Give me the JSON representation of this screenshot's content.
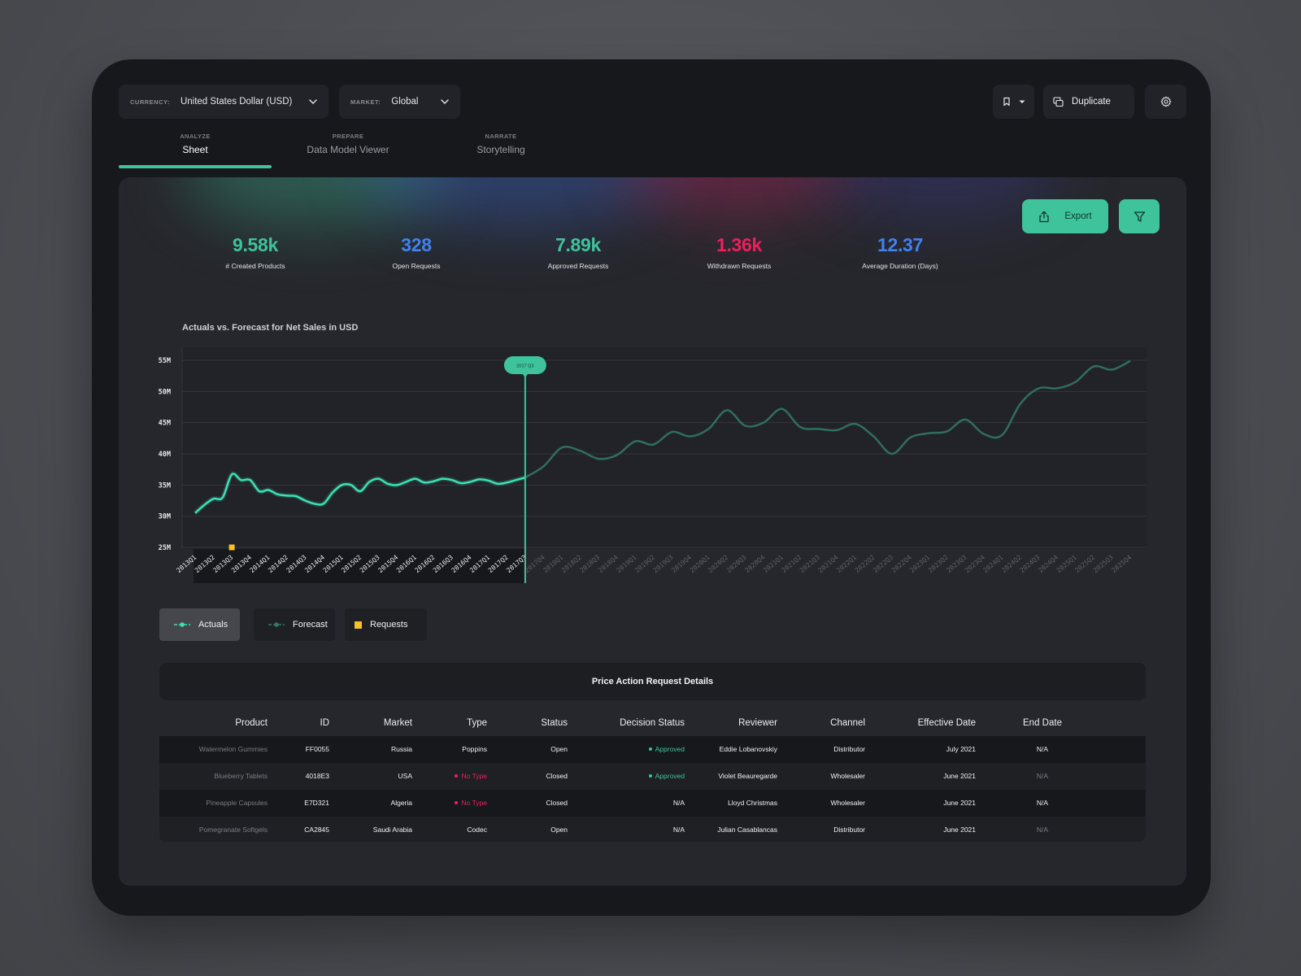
{
  "toolbar": {
    "currency": {
      "tag": "CURRENCY:",
      "value": "United States Dollar (USD)"
    },
    "market": {
      "tag": "MARKET:",
      "value": "Global"
    },
    "duplicate_label": "Duplicate"
  },
  "tabs": [
    {
      "tag": "ANALYZE",
      "label": "Sheet"
    },
    {
      "tag": "PREPARE",
      "label": "Data Model Viewer"
    },
    {
      "tag": "NARRATE",
      "label": "Storytelling"
    }
  ],
  "kpis": [
    {
      "value": "9.58k",
      "label": "# Created Products",
      "color": "#3ec39a"
    },
    {
      "value": "328",
      "label": "Open Requests",
      "color": "#3f82f0"
    },
    {
      "value": "7.89k",
      "label": "Approved Requests",
      "color": "#3ec39a"
    },
    {
      "value": "1.36k",
      "label": "Withdrawn Requests",
      "color": "#ef1f5d"
    },
    {
      "value": "12.37",
      "label": "Average Duration (Days)",
      "color": "#3f82f0"
    }
  ],
  "export_label": "Export",
  "chart_data": {
    "type": "line",
    "title": "Actuals vs. Forecast for Net Sales in USD",
    "y_ticks": [
      "55M",
      "50M",
      "45M",
      "40M",
      "35M",
      "30M",
      "25M"
    ],
    "ylim": [
      25,
      55
    ],
    "y_unit": "M",
    "categories": [
      "2013Q1",
      "2013Q2",
      "2013Q3",
      "2013Q4",
      "2014Q1",
      "2014Q2",
      "2014Q3",
      "2014Q4",
      "2015Q1",
      "2015Q2",
      "2015Q3",
      "2015Q4",
      "2016Q1",
      "2016Q2",
      "2016Q3",
      "2016Q4",
      "2017Q1",
      "2017Q2",
      "2017Q3",
      "2017Q4",
      "2018Q1",
      "2018Q2",
      "2018Q3",
      "2018Q4",
      "2019Q1",
      "2019Q2",
      "2019Q3",
      "2019Q4",
      "2020Q1",
      "2020Q2",
      "2020Q3",
      "2020Q4",
      "2021Q1",
      "2021Q2",
      "2021Q3",
      "2021Q4",
      "2022Q1",
      "2022Q2",
      "2022Q3",
      "2022Q4",
      "2023Q1",
      "2023Q2",
      "2023Q3",
      "2023Q4",
      "2024Q1",
      "2024Q2",
      "2024Q3",
      "2024Q4",
      "2025Q1",
      "2025Q2",
      "2025Q3",
      "2025Q4"
    ],
    "series": [
      {
        "name": "Actuals",
        "color": "#3de0b4",
        "x": [
          0,
          0.5,
          1,
          1.5,
          2,
          2.5,
          3,
          3.5,
          4,
          4.5,
          5,
          5.5,
          6,
          6.5,
          7,
          7.5,
          8,
          8.5,
          9,
          9.5,
          10,
          10.5,
          11,
          11.5,
          12,
          12.5,
          13,
          13.5,
          14,
          14.5,
          15,
          15.5,
          16,
          16.5,
          17,
          17.5,
          18
        ],
        "values": [
          30.5,
          31.8,
          32.8,
          33.0,
          36.7,
          35.8,
          35.8,
          34.0,
          34.2,
          33.5,
          33.3,
          33.2,
          32.5,
          32.0,
          32.0,
          33.8,
          35.0,
          35.0,
          34.0,
          35.5,
          36.0,
          35.2,
          35.0,
          35.5,
          36.0,
          35.4,
          35.6,
          36.0,
          35.8,
          35.3,
          35.5,
          35.9,
          35.7,
          35.2,
          35.4,
          35.8,
          36.2
        ]
      },
      {
        "name": "Forecast",
        "color": "#2f6f5b",
        "x": [
          18,
          19,
          20,
          21,
          22,
          23,
          24,
          25,
          26,
          27,
          28,
          29,
          30,
          31,
          32,
          33,
          34,
          35,
          36,
          37,
          38,
          39,
          40,
          41,
          42,
          43,
          44,
          45,
          46,
          47,
          48,
          49,
          50,
          51
        ],
        "values": [
          36.2,
          38.0,
          41.0,
          40.5,
          39.2,
          39.8,
          42.0,
          41.5,
          43.5,
          42.8,
          44.0,
          47.0,
          44.5,
          45.0,
          47.2,
          44.3,
          44.0,
          43.8,
          44.8,
          42.8,
          40.0,
          42.6,
          43.3,
          43.6,
          45.5,
          43.2,
          43.0,
          48.0,
          50.5,
          50.5,
          51.5,
          54.0,
          53.5,
          54.9
        ]
      },
      {
        "name": "Requests",
        "color": "#f5c327",
        "x": [
          2
        ],
        "values": [
          25
        ]
      }
    ],
    "marker": {
      "label": "2017 Q3",
      "x": 18
    },
    "grid": true,
    "legend": "bottom-left"
  },
  "legend": [
    {
      "label": "Actuals"
    },
    {
      "label": "Forecast"
    },
    {
      "label": "Requests"
    }
  ],
  "table": {
    "title": "Price Action Request Details",
    "columns": [
      "Product",
      "ID",
      "Market",
      "Type",
      "Status",
      "Decision Status",
      "Reviewer",
      "Channel",
      "Effective Date",
      "End Date"
    ],
    "rows": [
      [
        "Watermelon Gummies",
        "FF0055",
        "Russia",
        "Poppins",
        "Open",
        "Approved",
        "Eddie Lobanovskiy",
        "Distributor",
        "July 2021",
        "N/A"
      ],
      [
        "Blueberry Tablets",
        "4018E3",
        "USA",
        "No Type",
        "Closed",
        "Approved",
        "Violet Beauregarde",
        "Wholesaler",
        "June 2021",
        "N/A"
      ],
      [
        "Pineapple Capsules",
        "E7D321",
        "Algeria",
        "No Type",
        "Closed",
        "N/A",
        "Lloyd Christmas",
        "Wholesaler",
        "June 2021",
        "N/A"
      ],
      [
        "Pomegranate Softgels",
        "CA2845",
        "Saudi Arabia",
        "Codec",
        "Open",
        "N/A",
        "Julian Casablancas",
        "Distributor",
        "June 2021",
        "N/A"
      ]
    ]
  },
  "colors": {
    "accent": "#3ec39a",
    "negative": "#ef1f5d",
    "info": "#3f82f0"
  }
}
